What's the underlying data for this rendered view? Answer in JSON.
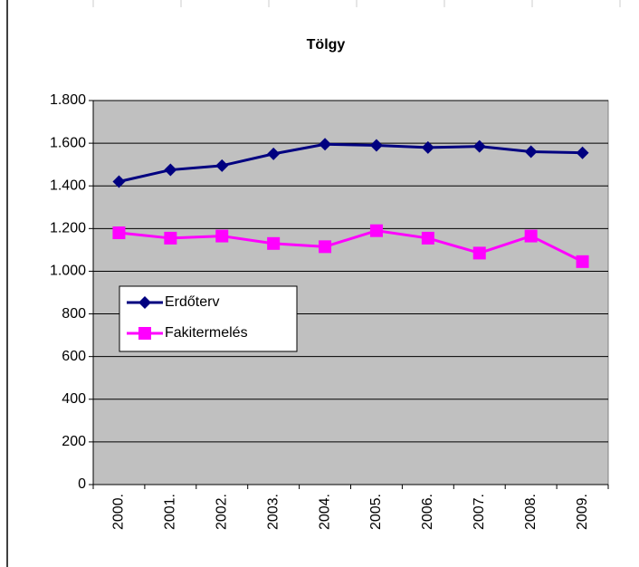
{
  "chart_data": {
    "type": "line",
    "title": "Tölgy",
    "categories": [
      "2000.",
      "2001.",
      "2002.",
      "2003.",
      "2004.",
      "2005.",
      "2006.",
      "2007.",
      "2008.",
      "2009."
    ],
    "series": [
      {
        "name": "Erdőterv",
        "color": "#000080",
        "marker": "diamond",
        "values": [
          1420,
          1475,
          1495,
          1550,
          1595,
          1590,
          1580,
          1585,
          1560,
          1555
        ]
      },
      {
        "name": "Fakitermelés",
        "color": "#ff00ff",
        "marker": "square",
        "values": [
          1180,
          1155,
          1165,
          1130,
          1115,
          1190,
          1155,
          1085,
          1165,
          1045
        ]
      }
    ],
    "ylim": [
      0,
      1800
    ],
    "yticks": [
      0,
      200,
      400,
      600,
      800,
      {
        "value": 1000,
        "label": "1.000"
      },
      {
        "value": 1200,
        "label": "1.200"
      },
      {
        "value": 1400,
        "label": "1.400"
      },
      {
        "value": 1600,
        "label": "1.600"
      },
      {
        "value": 1800,
        "label": "1.800"
      }
    ],
    "grid": true,
    "legend": "left"
  }
}
